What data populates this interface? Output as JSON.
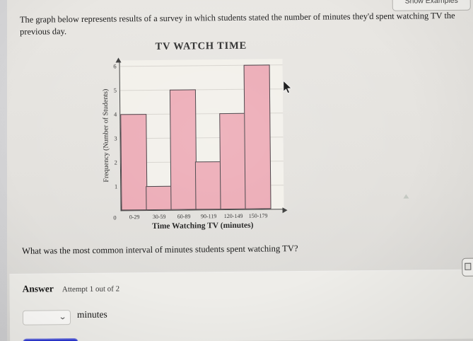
{
  "ui": {
    "show_examples_button": "Show Examples",
    "problem_text": "The graph below represents results of a survey in which students stated the number of minutes they'd spent watching TV the previous day.",
    "question_text": "What was the most common interval of minutes students spent watching TV?",
    "answer_label": "Answer",
    "attempt_label": "Attempt 1 out of 2",
    "answer_dropdown_value": "",
    "answer_unit": "minutes",
    "icons": {
      "dropdown": "chevron-down",
      "pointer": "mouse-arrow-cursor"
    }
  },
  "chart_data": {
    "type": "bar",
    "title": "TV WATCH TIME",
    "categories": [
      "0-29",
      "30-59",
      "60-89",
      "90-119",
      "120-149",
      "150-179"
    ],
    "values": [
      4,
      1,
      5,
      2,
      4,
      6
    ],
    "xlabel": "Time Watching TV (minutes)",
    "ylabel": "Frequency (Number of Students)",
    "ylim": [
      0,
      6
    ],
    "yticks": [
      1,
      2,
      3,
      4,
      5,
      6
    ],
    "origin_tick": "0",
    "grid": true,
    "legend": false,
    "bar_fill": "#ecaab5",
    "bar_stroke": "#403c41"
  },
  "colors": {
    "submit_button_blue": "#2b36cf",
    "page_background": "#e3e1dd",
    "plot_background": "#f2f0ea"
  }
}
